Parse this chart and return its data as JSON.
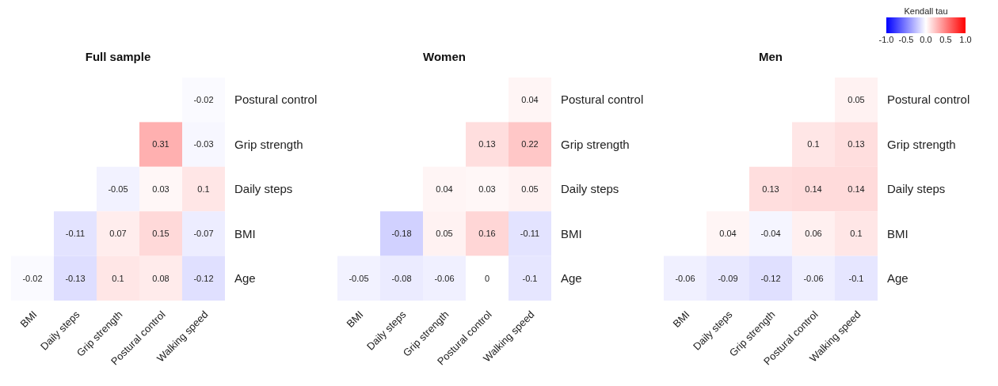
{
  "chart_data": [
    {
      "type": "heatmap",
      "title": "Full sample",
      "categories": [
        "BMI",
        "Daily steps",
        "Grip strength",
        "Postural control",
        "Walking speed"
      ],
      "y_categories": [
        "Postural control",
        "Grip strength",
        "Daily steps",
        "BMI",
        "Age"
      ],
      "data_labels": true,
      "cells": [
        [
          null,
          null,
          null,
          null,
          -0.02
        ],
        [
          null,
          null,
          null,
          0.31,
          -0.03
        ],
        [
          null,
          null,
          -0.05,
          0.03,
          0.1
        ],
        [
          null,
          -0.11,
          0.07,
          0.15,
          -0.07
        ],
        [
          -0.02,
          -0.13,
          0.1,
          0.08,
          -0.12
        ]
      ]
    },
    {
      "type": "heatmap",
      "title": "Women",
      "categories": [
        "BMI",
        "Daily steps",
        "Grip strength",
        "Postural control",
        "Walking speed"
      ],
      "y_categories": [
        "Postural control",
        "Grip strength",
        "Daily steps",
        "BMI",
        "Age"
      ],
      "data_labels": true,
      "cells": [
        [
          null,
          null,
          null,
          null,
          0.04
        ],
        [
          null,
          null,
          null,
          0.13,
          0.22
        ],
        [
          null,
          null,
          0.04,
          0.03,
          0.05
        ],
        [
          null,
          -0.18,
          0.05,
          0.16,
          -0.11
        ],
        [
          -0.05,
          -0.08,
          -0.06,
          0,
          -0.1
        ]
      ]
    },
    {
      "type": "heatmap",
      "title": "Men",
      "categories": [
        "BMI",
        "Daily steps",
        "Grip strength",
        "Postural control",
        "Walking speed"
      ],
      "y_categories": [
        "Postural control",
        "Grip strength",
        "Daily steps",
        "BMI",
        "Age"
      ],
      "data_labels": true,
      "clabel": "Kendall tau",
      "clim": [
        -1.0,
        1.0
      ],
      "cticks": [
        {
          "value": -1,
          "label": "-1.0"
        },
        {
          "value": -0.5,
          "label": "-0.5"
        },
        {
          "value": 0,
          "label": "0.0"
        },
        {
          "value": 0.5,
          "label": "0.5"
        },
        {
          "value": 1,
          "label": "1.0"
        }
      ],
      "cells": [
        [
          null,
          null,
          null,
          null,
          0.05
        ],
        [
          null,
          null,
          null,
          0.1,
          0.13
        ],
        [
          null,
          null,
          0.13,
          0.14,
          0.14
        ],
        [
          null,
          0.04,
          -0.04,
          0.06,
          0.1
        ],
        [
          -0.06,
          -0.09,
          -0.12,
          -0.06,
          -0.1
        ]
      ]
    }
  ]
}
